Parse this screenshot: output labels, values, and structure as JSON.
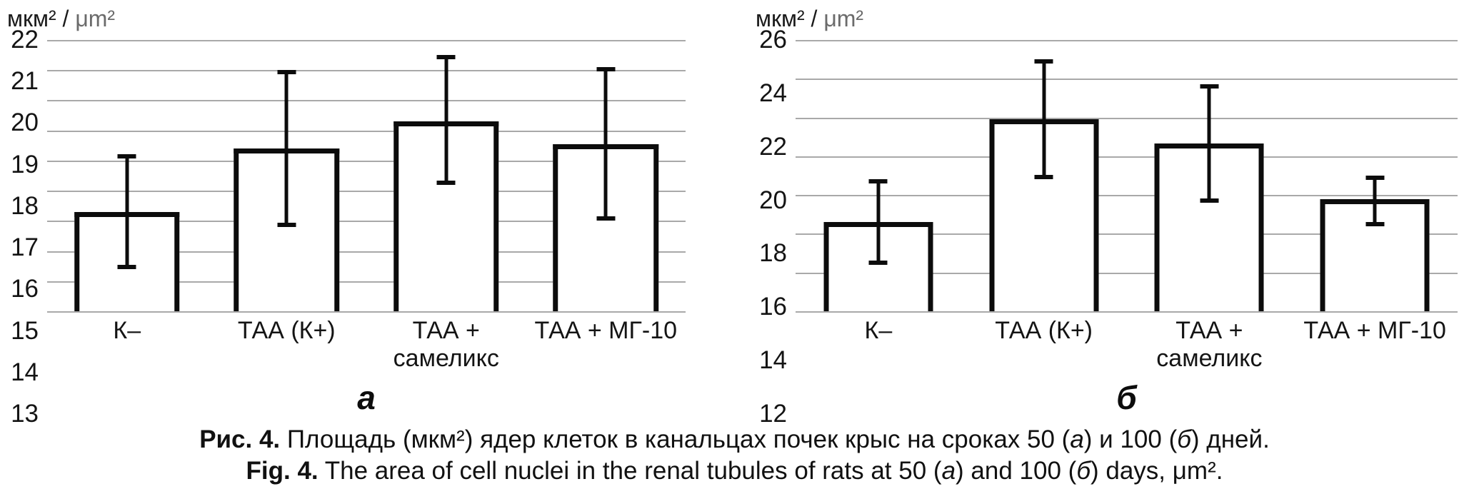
{
  "chart_data": [
    {
      "type": "bar",
      "letter": "а",
      "title": "",
      "xlabel": "",
      "ylabel": "мкм² / μm²",
      "unit_label_primary": "мкм² / ",
      "unit_label_secondary": "μm²",
      "ylim": [
        13,
        22
      ],
      "yticks": [
        22,
        21,
        20,
        19,
        18,
        17,
        16,
        15,
        14,
        13
      ],
      "grid": true,
      "legend": "none",
      "categories": [
        "К–",
        "ТАА (К+)",
        "ТАА + самеликс",
        "ТАА + МГ-10"
      ],
      "category_lines": [
        [
          "К–"
        ],
        [
          "ТАА (К+)"
        ],
        [
          "ТАА +",
          "самеликс"
        ],
        [
          "ТАА + МГ-10"
        ]
      ],
      "values": [
        16.3,
        18.4,
        19.3,
        18.55
      ],
      "error_low": [
        14.4,
        15.8,
        17.2,
        16.0
      ],
      "error_high": [
        18.2,
        21.0,
        21.5,
        21.1
      ]
    },
    {
      "type": "bar",
      "letter": "б",
      "title": "",
      "xlabel": "",
      "ylabel": "мкм² / μm²",
      "unit_label_primary": "мкм² / ",
      "unit_label_secondary": "μm²",
      "ylim": [
        12,
        26
      ],
      "yticks": [
        26,
        24,
        22,
        20,
        18,
        16,
        14,
        12
      ],
      "grid": true,
      "legend": "none",
      "categories": [
        "К–",
        "ТАА (К+)",
        "ТАА + самеликс",
        "ТАА + МГ-10"
      ],
      "category_lines": [
        [
          "К–"
        ],
        [
          "ТАА (К+)"
        ],
        [
          "ТАА +",
          "самеликс"
        ],
        [
          "ТАА + МГ-10"
        ]
      ],
      "values": [
        16.6,
        21.9,
        20.65,
        17.8
      ],
      "error_low": [
        14.4,
        18.8,
        17.6,
        16.4
      ],
      "error_high": [
        18.8,
        25.0,
        23.7,
        19.0
      ]
    }
  ],
  "caption": {
    "ru_parts": [
      {
        "t": "Рис. 4.",
        "b": 1
      },
      {
        "t": " Площадь (мкм²) ядер клеток в канальцах почек крыс на сроках 50 ("
      },
      {
        "t": "а",
        "i": 1
      },
      {
        "t": ") и 100 ("
      },
      {
        "t": "б",
        "i": 1
      },
      {
        "t": ") дней."
      }
    ],
    "en_parts": [
      {
        "t": "Fig. 4.",
        "b": 1
      },
      {
        "t": " The area of cell nuclei in the renal tubules of rats at 50 ("
      },
      {
        "t": "а",
        "i": 1
      },
      {
        "t": ") and 100 ("
      },
      {
        "t": "б",
        "i": 1
      },
      {
        "t": ") days, μm²."
      }
    ]
  }
}
